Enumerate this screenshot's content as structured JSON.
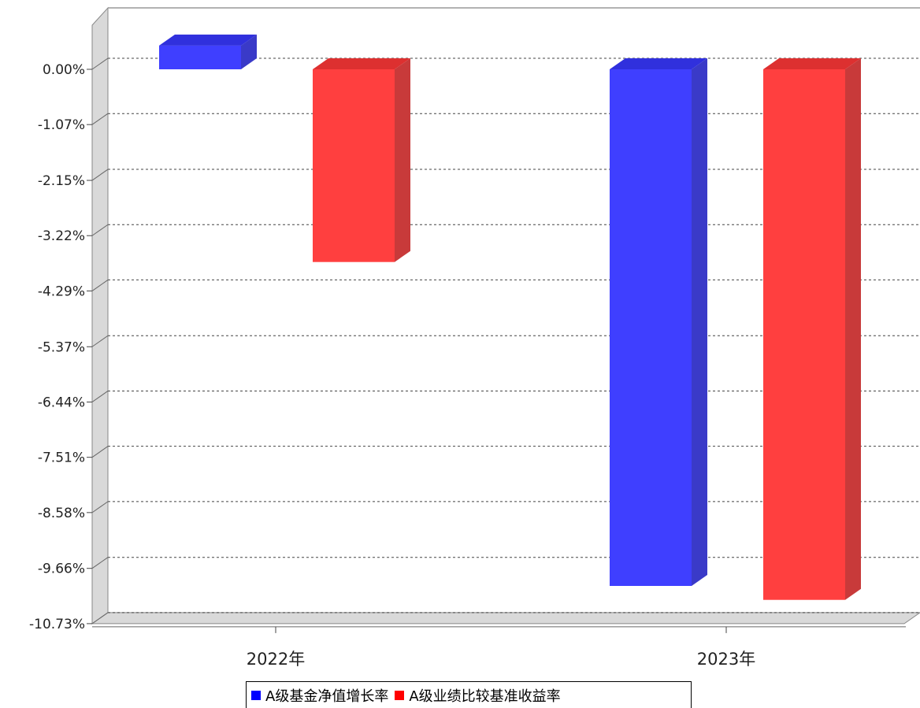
{
  "chart_data": {
    "type": "bar",
    "categories": [
      "2022年",
      "2023年"
    ],
    "series": [
      {
        "name": "A级基金净值增长率",
        "values": [
          0.46,
          -10.0
        ],
        "color": "#3f3fff"
      },
      {
        "name": "A级业绩比较基准收益率",
        "values": [
          -3.73,
          -10.27
        ],
        "color": "#ff3f3f"
      }
    ],
    "yticks": [
      "0.00%",
      "-1.07%",
      "-2.15%",
      "-3.22%",
      "-4.29%",
      "-5.37%",
      "-6.44%",
      "-7.51%",
      "-8.58%",
      "-9.66%",
      "-10.73%"
    ],
    "ylim": [
      -10.73,
      0.55
    ],
    "grid": true,
    "legend_position": "bottom"
  }
}
